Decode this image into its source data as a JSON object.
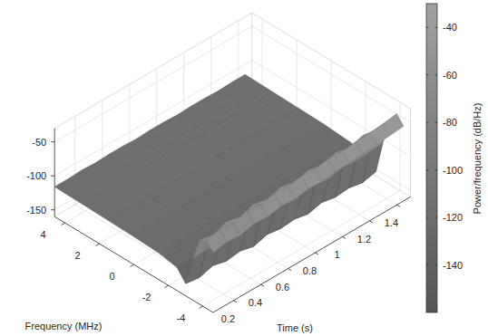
{
  "chart_data": {
    "type": "surface",
    "xlabel": "Frequency (MHz)",
    "ylabel": "Time (s)",
    "x": [
      -4.6,
      -4.2,
      -3.8,
      -3.4,
      -3.0,
      -2.5,
      -1.5,
      0,
      1.5,
      3,
      4.6
    ],
    "y": [
      0.05,
      0.15,
      0.25,
      0.35,
      0.45,
      0.55,
      0.65,
      0.75,
      0.85,
      0.95,
      1.05,
      1.15,
      1.25,
      1.35,
      1.45
    ],
    "z": [
      [
        -72,
        -60,
        -66,
        -100,
        -142,
        -126,
        -121,
        -119,
        -118,
        -117,
        -116
      ],
      [
        -68,
        -55,
        -70,
        -98,
        -145,
        -125,
        -120,
        -119,
        -118,
        -116,
        -116
      ],
      [
        -70,
        -58,
        -62,
        -102,
        -139,
        -126,
        -121,
        -118,
        -117,
        -117,
        -115
      ],
      [
        -65,
        -52,
        -67,
        -96,
        -144,
        -124,
        -120,
        -119,
        -118,
        -116,
        -116
      ],
      [
        -66,
        -54,
        -60,
        -99,
        -141,
        -125,
        -121,
        -118,
        -117,
        -117,
        -115
      ],
      [
        -62,
        -50,
        -64,
        -97,
        -146,
        -126,
        -120,
        -119,
        -118,
        -116,
        -115
      ],
      [
        -64,
        -51,
        -58,
        -101,
        -140,
        -125,
        -121,
        -118,
        -117,
        -116,
        -116
      ],
      [
        -60,
        -48,
        -63,
        -95,
        -143,
        -124,
        -120,
        -119,
        -118,
        -117,
        -115
      ],
      [
        -61,
        -49,
        -57,
        -98,
        -141,
        -126,
        -121,
        -118,
        -117,
        -116,
        -115
      ],
      [
        -58,
        -46,
        -61,
        -96,
        -145,
        -125,
        -120,
        -119,
        -118,
        -116,
        -116
      ],
      [
        -57,
        -47,
        -55,
        -100,
        -140,
        -124,
        -121,
        -118,
        -117,
        -117,
        -115
      ],
      [
        -55,
        -44,
        -59,
        -94,
        -144,
        -126,
        -120,
        -119,
        -118,
        -116,
        -115
      ],
      [
        -54,
        -43,
        -53,
        -97,
        -142,
        -125,
        -121,
        -118,
        -117,
        -116,
        -116
      ],
      [
        -52,
        -41,
        -56,
        -95,
        -146,
        -124,
        -120,
        -119,
        -118,
        -117,
        -115
      ],
      [
        -50,
        -38,
        -52,
        -93,
        -141,
        -126,
        -121,
        -118,
        -117,
        -116,
        -115
      ]
    ],
    "xlim": [
      -4.6,
      4.6
    ],
    "ylim": [
      0.05,
      1.5
    ],
    "zlim": [
      -160,
      -30
    ],
    "xticks": [
      -4,
      -2,
      0,
      2,
      4
    ],
    "yticks": [
      0.2,
      0.4,
      0.6,
      0.8,
      1,
      1.2,
      1.4
    ],
    "zticks": [
      -150,
      -100,
      -50
    ],
    "grid": true,
    "colorbar_label": "Power/frequency (dB/Hz)",
    "clim": [
      -160,
      -30
    ],
    "cticks": [
      -140,
      -120,
      -100,
      -80,
      -60,
      -40
    ]
  }
}
